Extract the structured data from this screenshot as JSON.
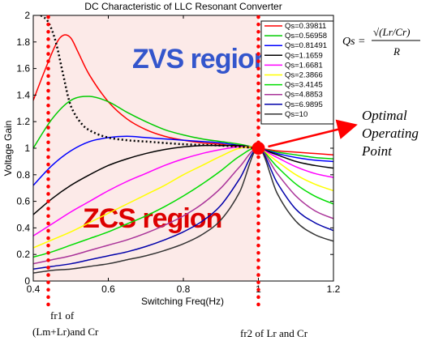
{
  "chart_data": {
    "type": "line",
    "title": "DC Characteristic of LLC Resonant Converter",
    "xlabel": "Switching Freq(Hz)",
    "ylabel": "Voltage Gain",
    "xlim": [
      0.4,
      1.2
    ],
    "ylim": [
      0,
      2
    ],
    "xticks": [
      "0.4",
      "0.6",
      "0.8",
      "1",
      "1.2"
    ],
    "yticks": [
      "0",
      "0.2",
      "0.4",
      "0.6",
      "0.8",
      "1",
      "1.2",
      "1.4",
      "1.6",
      "1.8",
      "2"
    ],
    "grid": false,
    "legend_position": "top-right",
    "legend_title": "",
    "series": [
      {
        "name": "Qs=0.39811",
        "color": "#ff0000",
        "x": [
          0.4,
          0.43,
          0.46,
          0.48,
          0.5,
          0.52,
          0.55,
          0.6,
          0.65,
          0.7,
          0.75,
          0.8,
          0.85,
          0.9,
          0.95,
          1.0,
          1.05,
          1.1,
          1.15,
          1.2
        ],
        "y": [
          1.36,
          1.58,
          1.78,
          1.85,
          1.83,
          1.72,
          1.55,
          1.35,
          1.22,
          1.14,
          1.09,
          1.06,
          1.04,
          1.03,
          1.01,
          1.0,
          0.98,
          0.97,
          0.96,
          0.95
        ]
      },
      {
        "name": "Qs=0.56958",
        "color": "#00cc00",
        "x": [
          0.4,
          0.45,
          0.5,
          0.55,
          0.6,
          0.65,
          0.7,
          0.75,
          0.8,
          0.85,
          0.9,
          0.95,
          1.0,
          1.05,
          1.1,
          1.15,
          1.2
        ],
        "y": [
          1.0,
          1.22,
          1.36,
          1.39,
          1.35,
          1.27,
          1.2,
          1.14,
          1.1,
          1.07,
          1.05,
          1.03,
          1.0,
          0.97,
          0.95,
          0.93,
          0.92
        ]
      },
      {
        "name": "Qs=0.81491",
        "color": "#0000ff",
        "x": [
          0.4,
          0.45,
          0.5,
          0.55,
          0.6,
          0.65,
          0.7,
          0.75,
          0.8,
          0.85,
          0.9,
          0.95,
          1.0,
          1.05,
          1.1,
          1.15,
          1.2
        ],
        "y": [
          0.72,
          0.87,
          0.98,
          1.05,
          1.08,
          1.09,
          1.08,
          1.07,
          1.06,
          1.05,
          1.04,
          1.02,
          1.0,
          0.96,
          0.93,
          0.91,
          0.9
        ]
      },
      {
        "name": "Qs=1.1659",
        "color": "#000000",
        "x": [
          0.4,
          0.45,
          0.5,
          0.55,
          0.6,
          0.65,
          0.7,
          0.75,
          0.8,
          0.85,
          0.9,
          0.95,
          1.0,
          1.05,
          1.1,
          1.15,
          1.2
        ],
        "y": [
          0.5,
          0.62,
          0.72,
          0.8,
          0.87,
          0.92,
          0.96,
          0.99,
          1.01,
          1.02,
          1.02,
          1.02,
          1.0,
          0.95,
          0.9,
          0.87,
          0.85
        ]
      },
      {
        "name": "Qs=1.6681",
        "color": "#ff00ff",
        "x": [
          0.4,
          0.45,
          0.5,
          0.55,
          0.6,
          0.65,
          0.7,
          0.75,
          0.8,
          0.85,
          0.9,
          0.95,
          1.0,
          1.05,
          1.1,
          1.15,
          1.2
        ],
        "y": [
          0.34,
          0.43,
          0.52,
          0.6,
          0.68,
          0.75,
          0.81,
          0.87,
          0.92,
          0.96,
          0.99,
          1.01,
          1.0,
          0.93,
          0.86,
          0.81,
          0.78
        ]
      },
      {
        "name": "Qs=2.3866",
        "color": "#ffff00",
        "x": [
          0.4,
          0.45,
          0.5,
          0.55,
          0.6,
          0.65,
          0.7,
          0.75,
          0.8,
          0.85,
          0.9,
          0.95,
          1.0,
          1.05,
          1.1,
          1.15,
          1.2
        ],
        "y": [
          0.25,
          0.31,
          0.37,
          0.44,
          0.51,
          0.58,
          0.65,
          0.72,
          0.8,
          0.87,
          0.94,
          1.0,
          1.0,
          0.9,
          0.8,
          0.73,
          0.68
        ]
      },
      {
        "name": "Qs=3.4145",
        "color": "#00dd00",
        "x": [
          0.4,
          0.45,
          0.5,
          0.55,
          0.6,
          0.65,
          0.7,
          0.75,
          0.8,
          0.85,
          0.9,
          0.95,
          1.0,
          1.05,
          1.1,
          1.15,
          1.2
        ],
        "y": [
          0.18,
          0.22,
          0.27,
          0.32,
          0.37,
          0.43,
          0.49,
          0.56,
          0.64,
          0.73,
          0.83,
          0.94,
          1.0,
          0.86,
          0.73,
          0.64,
          0.58
        ]
      },
      {
        "name": "Qs=4.8853",
        "color": "#aa3399",
        "x": [
          0.4,
          0.45,
          0.5,
          0.55,
          0.6,
          0.65,
          0.7,
          0.75,
          0.8,
          0.85,
          0.9,
          0.95,
          1.0,
          1.05,
          1.1,
          1.15,
          1.2
        ],
        "y": [
          0.13,
          0.16,
          0.19,
          0.23,
          0.27,
          0.31,
          0.36,
          0.42,
          0.49,
          0.58,
          0.7,
          0.86,
          1.0,
          0.81,
          0.64,
          0.53,
          0.47
        ]
      },
      {
        "name": "Qs=6.9895",
        "color": "#0000aa",
        "x": [
          0.4,
          0.45,
          0.5,
          0.55,
          0.6,
          0.65,
          0.7,
          0.75,
          0.8,
          0.85,
          0.9,
          0.95,
          1.0,
          1.05,
          1.1,
          1.15,
          1.2
        ],
        "y": [
          0.09,
          0.11,
          0.13,
          0.16,
          0.19,
          0.22,
          0.26,
          0.31,
          0.37,
          0.45,
          0.57,
          0.77,
          1.0,
          0.74,
          0.54,
          0.44,
          0.38
        ]
      },
      {
        "name": "Qs=10",
        "color": "#333333",
        "x": [
          0.4,
          0.45,
          0.5,
          0.55,
          0.6,
          0.65,
          0.7,
          0.75,
          0.8,
          0.85,
          0.9,
          0.95,
          1.0,
          1.05,
          1.1,
          1.15,
          1.2
        ],
        "y": [
          0.06,
          0.08,
          0.09,
          0.11,
          0.13,
          0.16,
          0.19,
          0.23,
          0.28,
          0.35,
          0.46,
          0.67,
          1.0,
          0.66,
          0.45,
          0.35,
          0.3
        ]
      }
    ],
    "boundary_curve": {
      "style": "dotted",
      "color": "#000000",
      "x": [
        0.42,
        0.44,
        0.46,
        0.48,
        0.5,
        0.53,
        0.56,
        0.6,
        0.65,
        0.7,
        0.8,
        0.9,
        1.0
      ],
      "y": [
        2.0,
        1.95,
        1.8,
        1.55,
        1.32,
        1.18,
        1.12,
        1.08,
        1.06,
        1.05,
        1.03,
        1.02,
        1.0
      ]
    },
    "vertical_markers": [
      {
        "x": 0.44,
        "color": "#ff0000",
        "style": "dotted",
        "label": "fr1 of\n(Lm+Lr)and Cr"
      },
      {
        "x": 1.0,
        "color": "#ff0000",
        "style": "dotted",
        "label": "fr2 of Lr and Cr"
      }
    ],
    "optimal_point": {
      "x": 1.0,
      "y": 1.0,
      "color": "#ff0000",
      "label": "Optimal\nOperating\nPoint"
    },
    "regions": [
      {
        "label": "ZVS region",
        "color": "#3355cc",
        "x_range": [
          0.44,
          1.0
        ],
        "y_range": [
          1.0,
          2.0
        ]
      },
      {
        "label": "ZCS region",
        "color": "#dd0000",
        "x_range": [
          0.44,
          1.0
        ],
        "y_range": [
          0.0,
          1.0
        ]
      }
    ],
    "formula": {
      "lhs": "Qs =",
      "numerator": "√(Lr/Cr)",
      "denominator": "R"
    }
  }
}
